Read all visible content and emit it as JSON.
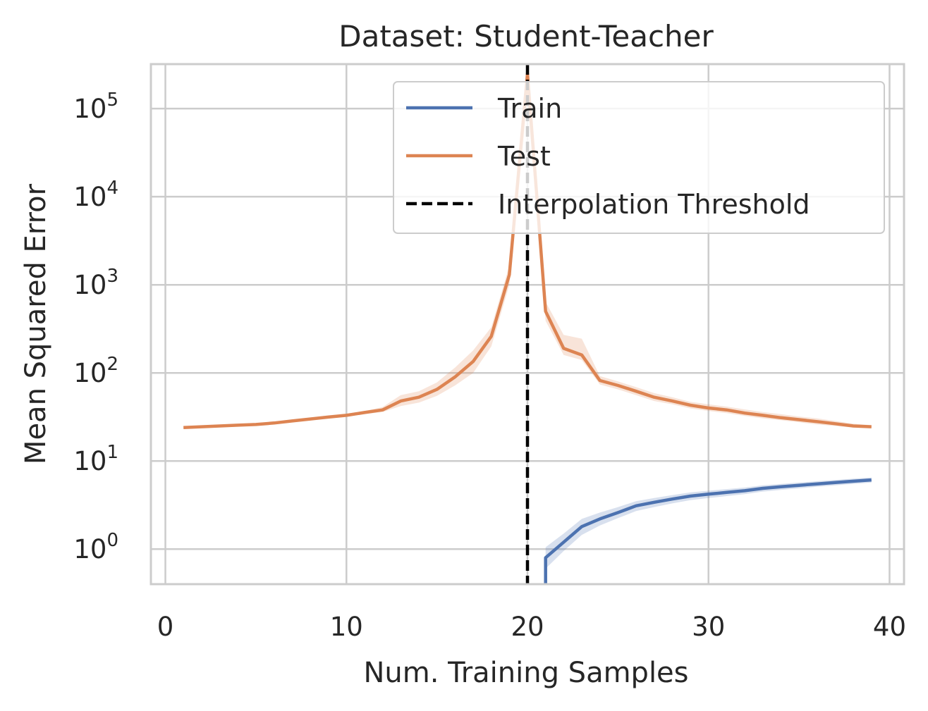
{
  "chart_data": {
    "type": "line",
    "title": "Dataset: Student-Teacher",
    "xlabel": "Num. Training Samples",
    "ylabel": "Mean Squared Error",
    "xlim": [
      -0.8,
      40.8
    ],
    "ylim": [
      0.4,
      320000
    ],
    "yscale": "log",
    "grid": true,
    "legend_position": "top-right",
    "x_ticks": [
      0,
      10,
      20,
      30,
      40
    ],
    "x_tick_labels": [
      "0",
      "10",
      "20",
      "30",
      "40"
    ],
    "y_ticks": [
      1,
      10,
      100,
      1000,
      10000,
      100000
    ],
    "y_tick_labels": [
      {
        "base": "10",
        "exp": "0"
      },
      {
        "base": "10",
        "exp": "1"
      },
      {
        "base": "10",
        "exp": "2"
      },
      {
        "base": "10",
        "exp": "3"
      },
      {
        "base": "10",
        "exp": "4"
      },
      {
        "base": "10",
        "exp": "5"
      }
    ],
    "series": [
      {
        "name": "Train",
        "color": "#4c72b0",
        "x": [
          21,
          21,
          22,
          23,
          24,
          25,
          26,
          27,
          28,
          29,
          30,
          31,
          32,
          33,
          34,
          35,
          36,
          37,
          38,
          39
        ],
        "y": [
          0.4,
          0.8,
          1.2,
          1.8,
          2.2,
          2.6,
          3.1,
          3.4,
          3.7,
          4.0,
          4.2,
          4.4,
          4.6,
          4.9,
          5.1,
          5.3,
          5.5,
          5.7,
          5.9,
          6.1
        ],
        "lower": [
          0.4,
          0.6,
          0.95,
          1.45,
          1.85,
          2.25,
          2.7,
          3.0,
          3.3,
          3.6,
          3.8,
          4.0,
          4.2,
          4.5,
          4.7,
          4.9,
          5.1,
          5.3,
          5.5,
          5.7
        ],
        "upper": [
          0.4,
          1.05,
          1.5,
          2.2,
          2.6,
          3.0,
          3.5,
          3.8,
          4.1,
          4.4,
          4.6,
          4.8,
          5.0,
          5.3,
          5.5,
          5.7,
          5.9,
          6.1,
          6.3,
          6.5
        ]
      },
      {
        "name": "Test",
        "color": "#dd8452",
        "x": [
          1,
          2,
          3,
          4,
          5,
          6,
          7,
          8,
          9,
          10,
          11,
          12,
          13,
          14,
          15,
          16,
          17,
          18,
          19,
          20,
          21,
          22,
          23,
          24,
          25,
          26,
          27,
          28,
          29,
          30,
          31,
          32,
          33,
          34,
          35,
          36,
          37,
          38,
          39
        ],
        "y": [
          24,
          24.5,
          25,
          25.5,
          26,
          27,
          28.5,
          30,
          31.5,
          33,
          35.5,
          38,
          48,
          53,
          65,
          90,
          135,
          260,
          1300,
          250000,
          500,
          190,
          160,
          82,
          72,
          62,
          53,
          48,
          43,
          40,
          38,
          35,
          33,
          31,
          29.5,
          28,
          26.5,
          25,
          24.5
        ],
        "lower": [
          23.5,
          24,
          24.5,
          25,
          25.5,
          26.5,
          28,
          29,
          30.5,
          32,
          34,
          36,
          42,
          46,
          55,
          72,
          100,
          200,
          1000,
          120000,
          390,
          160,
          140,
          74,
          65,
          56,
          48,
          44,
          39.5,
          37,
          35,
          32.5,
          30.5,
          29,
          27.5,
          26,
          25,
          24,
          23.5
        ],
        "upper": [
          24.5,
          25,
          25.5,
          26,
          26.5,
          27.5,
          29.5,
          31,
          33,
          34.5,
          37,
          41,
          56,
          62,
          78,
          115,
          180,
          330,
          1650,
          300000,
          640,
          270,
          245,
          92,
          80,
          69,
          59,
          53,
          47,
          44,
          41.5,
          38.5,
          36,
          34,
          32,
          30.5,
          28.5,
          26.5,
          25.5
        ]
      }
    ],
    "vline": {
      "name": "Interpolation Threshold",
      "x": 20,
      "color": "#000000",
      "style": "dashed"
    }
  }
}
